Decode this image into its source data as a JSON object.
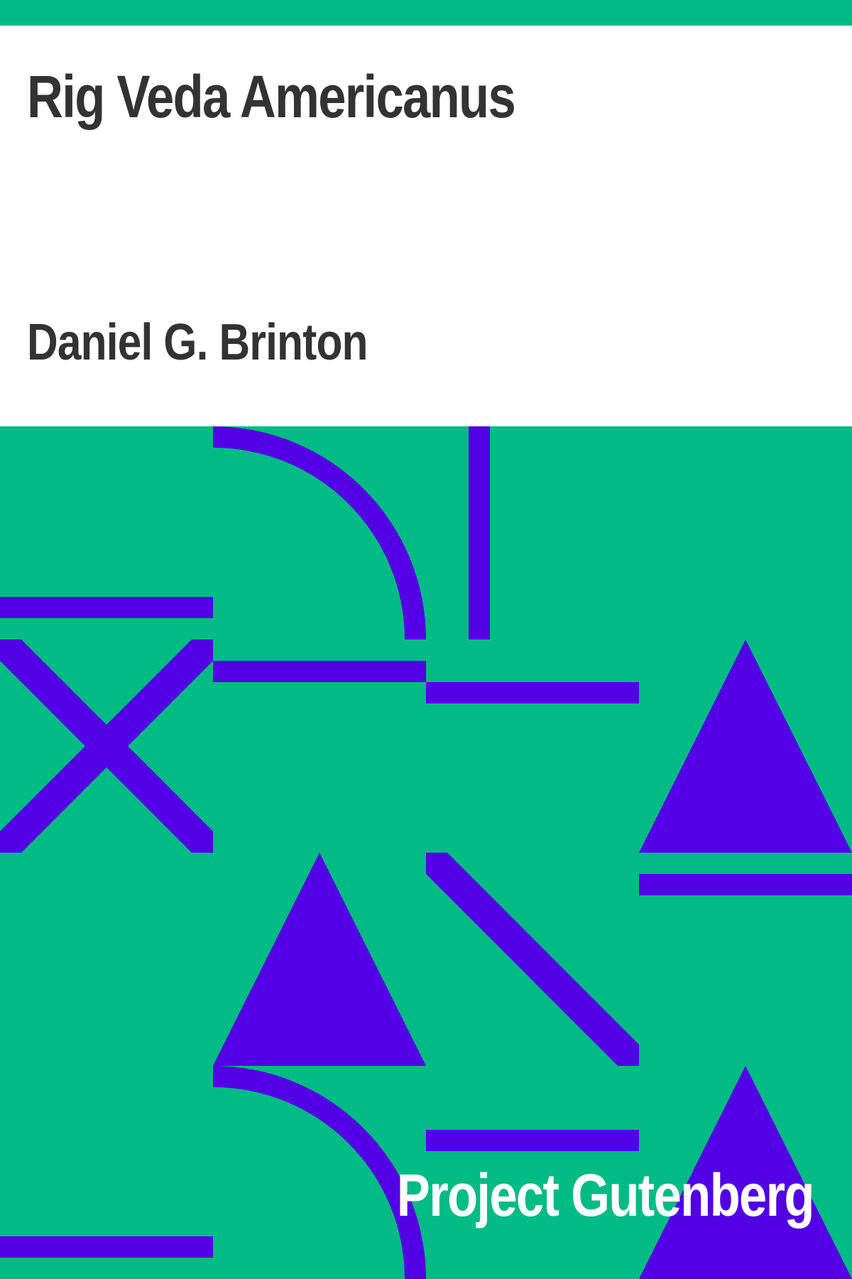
{
  "book": {
    "title": "Rig Veda Americanus",
    "author": "Daniel G. Brinton",
    "publisher": "Project Gutenberg"
  },
  "colors": {
    "background": "#00bb84",
    "accent": "#5200e5",
    "header_background": "#ffffff",
    "header_text": "#333333",
    "publisher_text": "#ffffff"
  }
}
